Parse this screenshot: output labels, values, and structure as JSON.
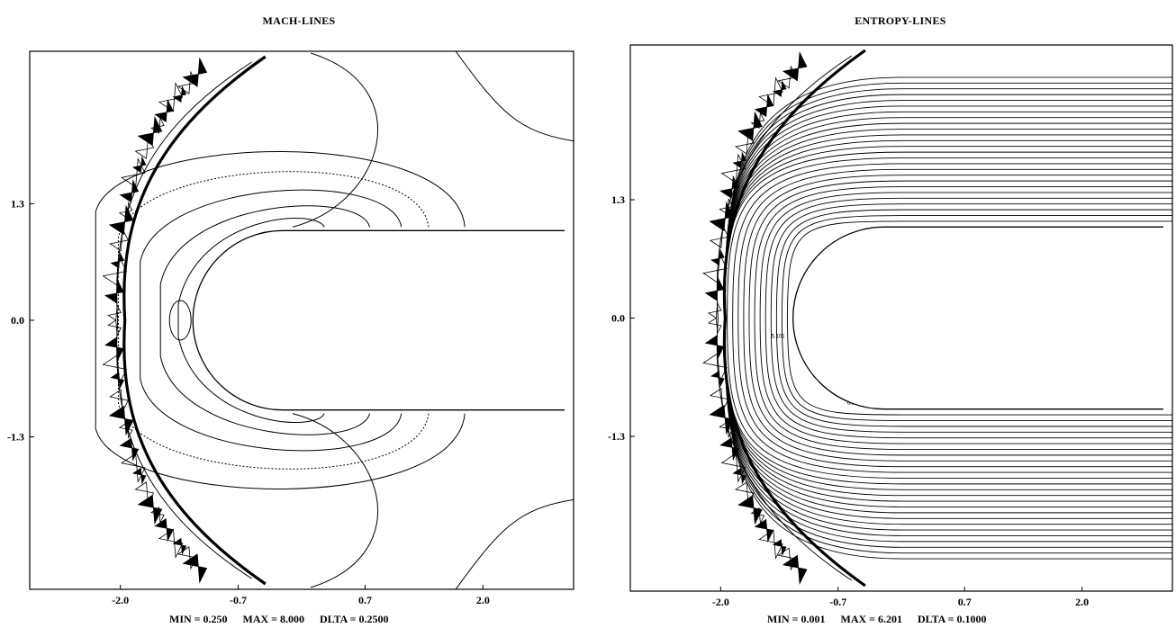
{
  "chart_data": [
    {
      "type": "contour",
      "title": "MACH-LINES",
      "xlim": [
        -3.0,
        3.0
      ],
      "ylim": [
        -3.0,
        3.0
      ],
      "x_ticks": [
        -2.0,
        -0.7,
        0.7,
        2.0
      ],
      "x_tick_labels": [
        "-2.0",
        "-0.7",
        "0.7",
        "2.0"
      ],
      "y_ticks": [
        1.3,
        0.0,
        -1.3
      ],
      "y_tick_labels": [
        "1.3",
        "0.0",
        "-1.3"
      ],
      "body": {
        "shape": "blunt-nosed body",
        "nose_x": -1.2,
        "half_width": 1.0
      },
      "min_label": "MIN =",
      "min_value": "0.250",
      "max_label": "MAX =",
      "max_value": "8.000",
      "delta_label": "DLTA =",
      "delta_value": "0.2500",
      "stats_text": {
        "min": "MIN =  0.250",
        "max": "MAX =  8.000",
        "delta": "DLTA =  0.2500"
      },
      "contour_labels": []
    },
    {
      "type": "contour",
      "title": "ENTROPY-LINES",
      "xlim": [
        -3.0,
        3.0
      ],
      "ylim": [
        -3.0,
        3.0
      ],
      "x_ticks": [
        -2.0,
        -0.7,
        0.7,
        2.0
      ],
      "x_tick_labels": [
        "-2.0",
        "-0.7",
        "0.7",
        "2.0"
      ],
      "y_ticks": [
        1.3,
        0.0,
        -1.3
      ],
      "y_tick_labels": [
        "1.3",
        "0.0",
        "-1.3"
      ],
      "body": {
        "shape": "blunt-nosed body",
        "nose_x": -1.2,
        "half_width": 1.0
      },
      "stats_text": {
        "min": "MIN =  0.001",
        "max": "MAX =  6.201",
        "delta": "DLTA =  0.1000"
      },
      "contour_labels": [
        "5.101",
        "5.501",
        "6.001",
        "6.101",
        "6.201"
      ]
    }
  ]
}
